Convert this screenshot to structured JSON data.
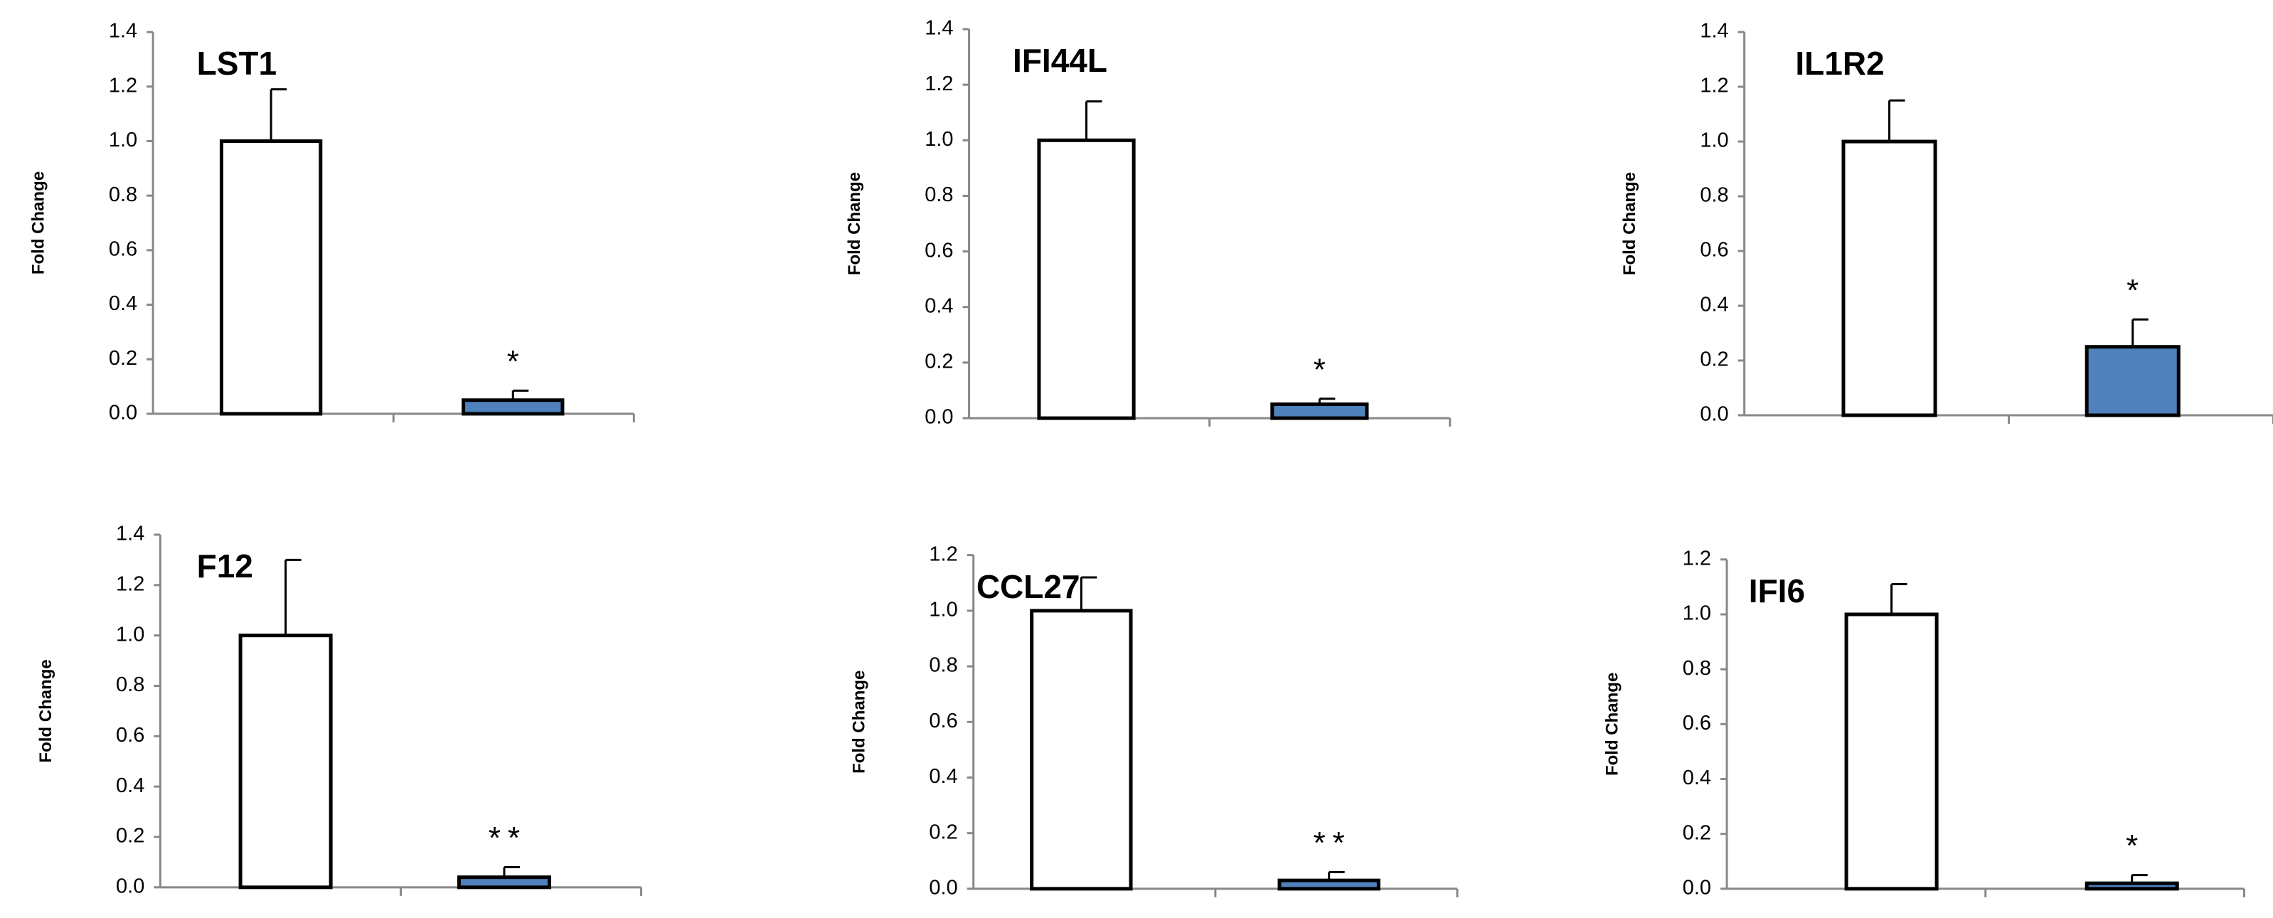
{
  "chart_data": [
    {
      "type": "bar",
      "title": "LST1",
      "y_label": "Fold Change",
      "categories": [
        null,
        null
      ],
      "values": [
        1.0,
        0.05
      ],
      "errors": [
        0.19,
        0.035
      ],
      "colors": [
        "#ffffff",
        "#4f81bd"
      ],
      "annotation": "*",
      "ylim": [
        0,
        1.4
      ],
      "yticks": [
        {
          "value": 0,
          "label": "0.0"
        },
        0.2,
        0.4,
        0.6,
        0.8,
        {
          "value": 1,
          "label": "1.0"
        },
        1.2,
        1.4
      ]
    },
    {
      "type": "bar",
      "title": "IFI44L",
      "y_label": "Fold Change",
      "categories": [
        null,
        null
      ],
      "values": [
        1.0,
        0.05
      ],
      "errors": [
        0.14,
        0.02
      ],
      "colors": [
        "#ffffff",
        "#4f81bd"
      ],
      "annotation": "*",
      "ylim": [
        0,
        1.4
      ],
      "yticks": [
        {
          "value": 0,
          "label": "0.0"
        },
        0.2,
        0.4,
        0.6,
        0.8,
        {
          "value": 1,
          "label": "1.0"
        },
        1.2,
        1.4
      ]
    },
    {
      "type": "bar",
      "title": "IL1R2",
      "y_label": "Fold Change",
      "categories": [
        null,
        null
      ],
      "values": [
        1.0,
        0.25
      ],
      "errors": [
        0.15,
        0.1
      ],
      "colors": [
        "#ffffff",
        "#4f81bd"
      ],
      "annotation": "*",
      "ylim": [
        0,
        1.4
      ],
      "yticks": [
        {
          "value": 0,
          "label": "0.0"
        },
        0.2,
        0.4,
        0.6,
        0.8,
        {
          "value": 1,
          "label": "1.0"
        },
        1.2,
        1.4
      ]
    },
    {
      "type": "bar",
      "title": "F12",
      "y_label": "Fold Change",
      "categories": [
        null,
        null
      ],
      "values": [
        1.0,
        0.04
      ],
      "errors": [
        0.3,
        0.04
      ],
      "colors": [
        "#ffffff",
        "#4f81bd"
      ],
      "annotation": "**",
      "ylim": [
        0,
        1.4
      ],
      "yticks": [
        {
          "value": 0,
          "label": "0.0"
        },
        0.2,
        0.4,
        0.6,
        0.8,
        {
          "value": 1,
          "label": "1.0"
        },
        1.2,
        1.4
      ]
    },
    {
      "type": "bar",
      "title": "CCL27",
      "y_label": "Fold Change",
      "categories": [
        null,
        null
      ],
      "values": [
        1.0,
        0.03
      ],
      "errors": [
        0.12,
        0.03
      ],
      "colors": [
        "#ffffff",
        "#4f81bd"
      ],
      "annotation": "**",
      "ylim": [
        0,
        1.2
      ],
      "yticks": [
        {
          "value": 0,
          "label": "0.0"
        },
        0.2,
        0.4,
        0.6,
        0.8,
        {
          "value": 1,
          "label": "1.0"
        },
        1.2
      ]
    },
    {
      "type": "bar",
      "title": "IFI6",
      "y_label": "Fold Change",
      "categories": [
        null,
        null
      ],
      "values": [
        1.0,
        0.02
      ],
      "errors": [
        0.11,
        0.03
      ],
      "colors": [
        "#ffffff",
        "#4f81bd"
      ],
      "annotation": "*",
      "ylim": [
        0,
        1.2
      ],
      "yticks": [
        {
          "value": 0,
          "label": "0.0"
        },
        0.2,
        0.4,
        0.6,
        0.8,
        {
          "value": 1,
          "label": "1.0"
        },
        1.2
      ]
    }
  ]
}
